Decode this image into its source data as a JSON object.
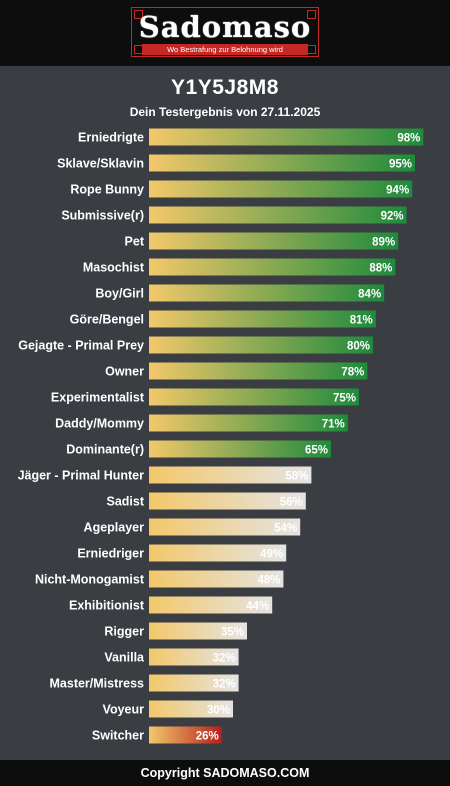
{
  "logo": {
    "word": "Sadomaso",
    "tagline": "Wo Bestrafung zur Belohnung wird"
  },
  "header": {
    "title": "Y1Y5J8M8",
    "subtitle": "Dein Testergebnis von 27.11.2025"
  },
  "footer": {
    "text": "Copyright SADOMASO.COM"
  },
  "colors": {
    "background": "#3a3d42",
    "bar_start": "#f3c86a",
    "high_end": "#1e8a3c",
    "mid_end": "#e4e4e4",
    "low_end": "#b3201c",
    "logo_red": "#c62828"
  },
  "chart_data": {
    "type": "bar",
    "orientation": "horizontal",
    "title": "Y1Y5J8M8",
    "subtitle": "Dein Testergebnis von 27.11.2025",
    "xlim": [
      0,
      100
    ],
    "unit": "%",
    "categories": [
      "Erniedrigte",
      "Sklave/Sklavin",
      "Rope Bunny",
      "Submissive(r)",
      "Pet",
      "Masochist",
      "Boy/Girl",
      "Göre/Bengel",
      "Gejagte - Primal Prey",
      "Owner",
      "Experimentalist",
      "Daddy/Mommy",
      "Dominante(r)",
      "Jäger - Primal Hunter",
      "Sadist",
      "Ageplayer",
      "Erniedriger",
      "Nicht-Monogamist",
      "Exhibitionist",
      "Rigger",
      "Vanilla",
      "Master/Mistress",
      "Voyeur",
      "Switcher"
    ],
    "values": [
      98,
      95,
      94,
      92,
      89,
      88,
      84,
      81,
      80,
      78,
      75,
      71,
      65,
      58,
      56,
      54,
      49,
      48,
      44,
      35,
      32,
      32,
      30,
      26
    ],
    "labels": [
      "98%",
      "95%",
      "94%",
      "92%",
      "89%",
      "88%",
      "84%",
      "81%",
      "80%",
      "78%",
      "75%",
      "71%",
      "65%",
      "58%",
      "56%",
      "54%",
      "49%",
      "48%",
      "44%",
      "35%",
      "32%",
      "32%",
      "30%",
      "26%"
    ],
    "grid": false,
    "legend": "none"
  }
}
